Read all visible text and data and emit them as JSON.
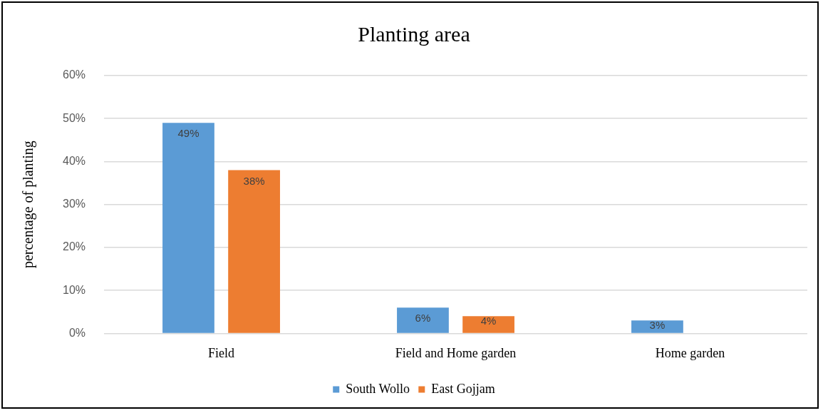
{
  "chart_data": {
    "type": "bar",
    "title": "Planting area",
    "ylabel": "percentage of planting",
    "categories": [
      "Field",
      "Field and Home garden",
      "Home garden"
    ],
    "series": [
      {
        "name": "South Wollo",
        "color": "#5b9bd5",
        "values": [
          49,
          6,
          3
        ],
        "value_labels": [
          "49%",
          "6%",
          "3%"
        ]
      },
      {
        "name": "East Gojjam",
        "color": "#ed7d31",
        "values": [
          38,
          4,
          null
        ],
        "value_labels": [
          "38%",
          "4%",
          null
        ]
      }
    ],
    "ylim": [
      0,
      60
    ],
    "yticks": [
      {
        "value": 0,
        "label": "0%"
      },
      {
        "value": 10,
        "label": "10%"
      },
      {
        "value": 20,
        "label": "20%"
      },
      {
        "value": 30,
        "label": "30%"
      },
      {
        "value": 40,
        "label": "40%"
      },
      {
        "value": 50,
        "label": "50%"
      },
      {
        "value": 60,
        "label": "60%"
      }
    ],
    "grid": "y",
    "legend": "bottom"
  }
}
